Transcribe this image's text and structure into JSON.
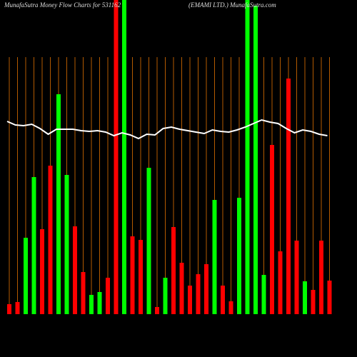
{
  "chart_data": {
    "type": "bar",
    "title": "MunafaSutra  Money Flow  Charts for 531162",
    "subtitle": "(EMAMI LTD.) MunafaSutra.com",
    "values": [
      14,
      17,
      107,
      192,
      119,
      208,
      308,
      195,
      123,
      59,
      27,
      31,
      51,
      450,
      450,
      109,
      104,
      205,
      10,
      51,
      122,
      72,
      40,
      56,
      70,
      160,
      40,
      18,
      163,
      450,
      432,
      55,
      237,
      88,
      330,
      103,
      46,
      34,
      103,
      47
    ],
    "colors": [
      "#ff0000",
      "#ff0000",
      "#00ff00",
      "#00ff00",
      "#ff0000",
      "#ff0000",
      "#00ff00",
      "#00ff00",
      "#ff0000",
      "#ff0000",
      "#00ff00",
      "#00ff00",
      "#ff0000",
      "#ff0000",
      "#00ff00",
      "#ff0000",
      "#ff0000",
      "#00ff00",
      "#ff0000",
      "#00ff00",
      "#ff0000",
      "#ff0000",
      "#ff0000",
      "#ff0000",
      "#ff0000",
      "#00ff00",
      "#ff0000",
      "#ff0000",
      "#00ff00",
      "#00ff00",
      "#00ff00",
      "#00ff00",
      "#ff0000",
      "#ff0000",
      "#ff0000",
      "#ff0000",
      "#00ff00",
      "#ff0000",
      "#ff0000",
      "#ff0000"
    ],
    "line": {
      "color": "#ffffff",
      "values": [
        270,
        265,
        264,
        266,
        260,
        252,
        259,
        259,
        259,
        257,
        256,
        257,
        255,
        250,
        254,
        251,
        246,
        252,
        251,
        260,
        262,
        259,
        257,
        255,
        253,
        258,
        256,
        255,
        258,
        262,
        267,
        272,
        269,
        267,
        260,
        254,
        258,
        256,
        252,
        250
      ]
    },
    "ylim": [
      0,
      440
    ],
    "grid": true,
    "grid_color": "#b35a00",
    "background": "#000000"
  }
}
